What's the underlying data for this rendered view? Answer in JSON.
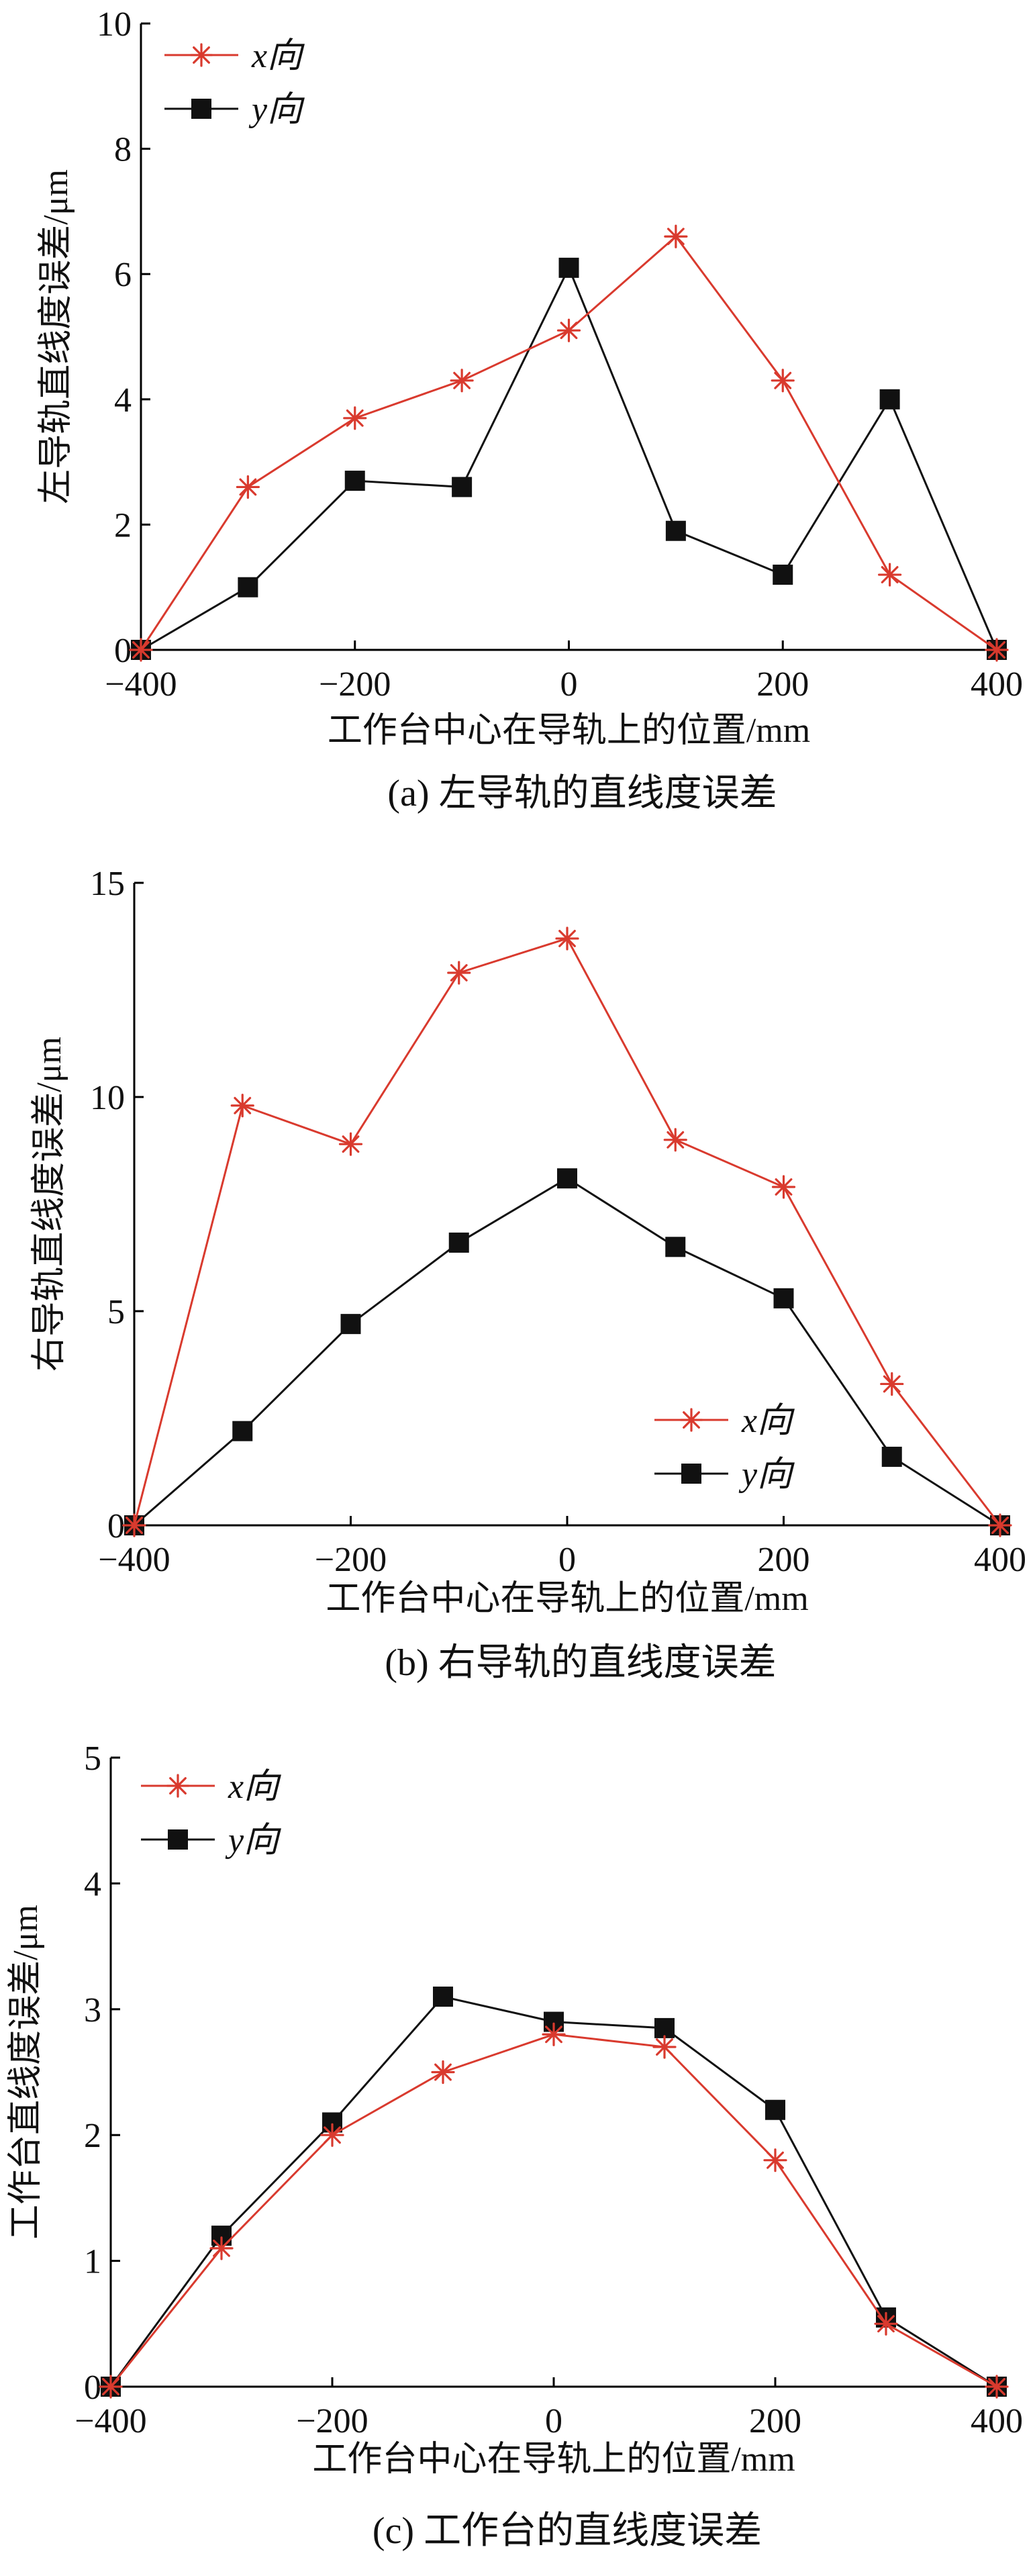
{
  "colors": {
    "x_series": "#d93a2e",
    "y_series": "#111111",
    "axis": "#000000"
  },
  "chart_data": [
    {
      "type": "line",
      "caption": "(a) 左导轨的直线度误差",
      "xlabel": "工作台中心在导轨上的位置/mm",
      "ylabel": "左导轨直线度误差/μm",
      "xlim": [
        -400,
        400
      ],
      "ylim": [
        0,
        10
      ],
      "xticks": [
        -400,
        -200,
        0,
        200,
        400
      ],
      "yticks": [
        0,
        2,
        4,
        6,
        8,
        10
      ],
      "x_tick_labels": [
        "−400",
        "−200",
        "0",
        "200",
        "400"
      ],
      "y_tick_labels": [
        "0",
        "2",
        "4",
        "6",
        "8",
        "10"
      ],
      "grid": false,
      "legend_position": "top-left",
      "x": [
        -400,
        -300,
        -200,
        -100,
        0,
        100,
        200,
        300,
        400
      ],
      "series": [
        {
          "name": "x向",
          "marker": "asterisk",
          "color": "#d93a2e",
          "values": [
            0,
            2.6,
            3.7,
            4.3,
            5.1,
            6.6,
            4.3,
            1.2,
            0
          ]
        },
        {
          "name": "y向",
          "marker": "square",
          "color": "#111111",
          "values": [
            0,
            1.0,
            2.7,
            2.6,
            6.1,
            1.9,
            1.2,
            4.0,
            0
          ]
        }
      ]
    },
    {
      "type": "line",
      "caption": "(b) 右导轨的直线度误差",
      "xlabel": "工作台中心在导轨上的位置/mm",
      "ylabel": "右导轨直线度误差/μm",
      "xlim": [
        -400,
        400
      ],
      "ylim": [
        0,
        15
      ],
      "xticks": [
        -400,
        -200,
        0,
        200,
        400
      ],
      "yticks": [
        0,
        5,
        10,
        15
      ],
      "x_tick_labels": [
        "−400",
        "−200",
        "0",
        "200",
        "400"
      ],
      "y_tick_labels": [
        "0",
        "5",
        "10",
        "15"
      ],
      "grid": false,
      "legend_position": "bottom-right",
      "x": [
        -400,
        -300,
        -200,
        -100,
        0,
        100,
        200,
        300,
        400
      ],
      "series": [
        {
          "name": "x向",
          "marker": "asterisk",
          "color": "#d93a2e",
          "values": [
            0,
            9.8,
            8.9,
            12.9,
            13.7,
            9.0,
            7.9,
            3.3,
            0
          ]
        },
        {
          "name": "y向",
          "marker": "square",
          "color": "#111111",
          "values": [
            0,
            2.2,
            4.7,
            6.6,
            8.1,
            6.5,
            5.3,
            1.6,
            0
          ]
        }
      ]
    },
    {
      "type": "line",
      "caption": "(c) 工作台的直线度误差",
      "xlabel": "工作台中心在导轨上的位置/mm",
      "ylabel": "工作台直线度误差/μm",
      "xlim": [
        -400,
        400
      ],
      "ylim": [
        0,
        5
      ],
      "xticks": [
        -400,
        -200,
        0,
        200,
        400
      ],
      "yticks": [
        0,
        1,
        2,
        3,
        4,
        5
      ],
      "x_tick_labels": [
        "−400",
        "−200",
        "0",
        "200",
        "400"
      ],
      "y_tick_labels": [
        "0",
        "1",
        "2",
        "3",
        "4",
        "5"
      ],
      "grid": false,
      "legend_position": "top-left",
      "x": [
        -400,
        -300,
        -200,
        -100,
        0,
        100,
        200,
        300,
        400
      ],
      "series": [
        {
          "name": "x向",
          "marker": "asterisk",
          "color": "#d93a2e",
          "values": [
            0,
            1.1,
            2.0,
            2.5,
            2.8,
            2.7,
            1.8,
            0.5,
            0
          ]
        },
        {
          "name": "y向",
          "marker": "square",
          "color": "#111111",
          "values": [
            0,
            1.2,
            2.1,
            3.1,
            2.9,
            2.85,
            2.2,
            0.55,
            0
          ]
        }
      ]
    }
  ]
}
